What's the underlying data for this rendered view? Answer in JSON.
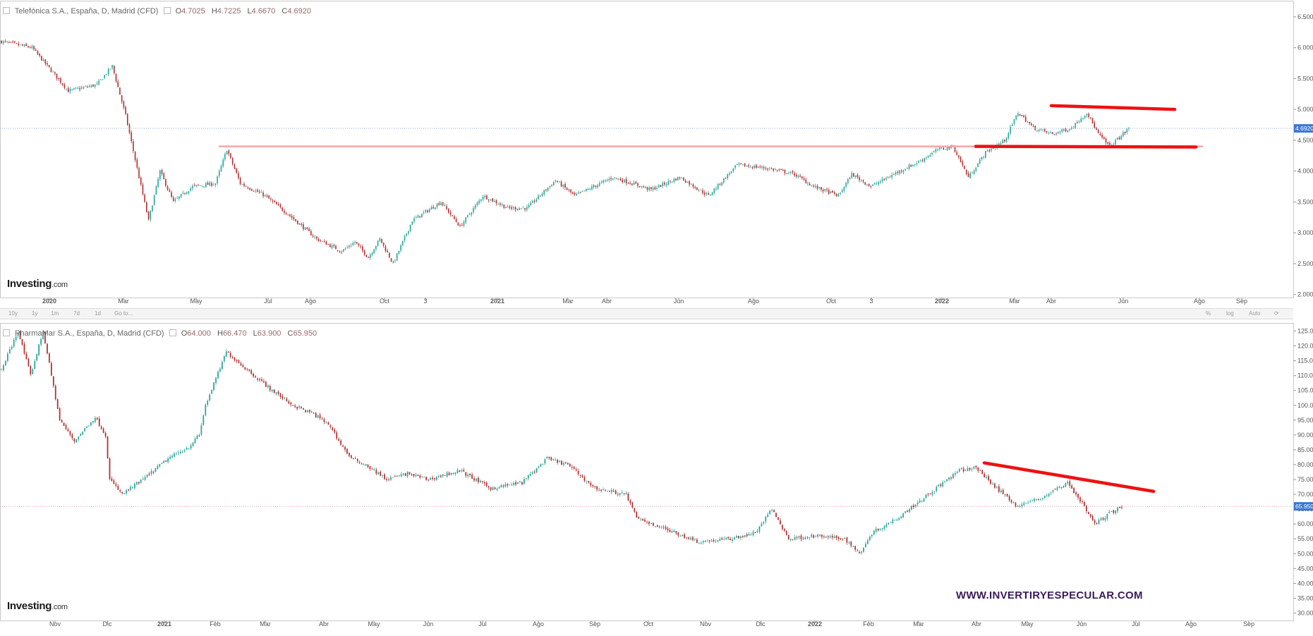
{
  "colors": {
    "up": "#26a69a",
    "down": "#b22f2f",
    "trend": "#ee1111",
    "level": "#f4a6a6",
    "price_tag": "#3b78d4",
    "axis": "#555555"
  },
  "toolbar": {
    "left": [
      "10y",
      "1y",
      "1m",
      "7d",
      "1d",
      "Go to..."
    ],
    "right": [
      "%",
      "log",
      "Auto"
    ]
  },
  "chart_data": [
    {
      "type": "candlestick",
      "symbol": "Telefónica S.A., España, D, Madrid (CFD)",
      "ohlc_labels": [
        "O",
        "H",
        "L",
        "C"
      ],
      "ohlc_values": [
        "4.7025",
        "4.7225",
        "4.6670",
        "4.6920"
      ],
      "last_price": "4.6920",
      "x_ticks": [
        "2020",
        "Mar",
        "May",
        "Jul",
        "Ago",
        "Oct",
        "3",
        "2021",
        "Mar",
        "Abr",
        "Jun",
        "Ago",
        "Oct",
        "3",
        "2022",
        "Mar",
        "Abr",
        "Jun",
        "Ago",
        "Sep"
      ],
      "y_ticks": [
        "6.5000",
        "6.0000",
        "5.5000",
        "5.0000",
        "4.5000",
        "4.0000",
        "3.5000",
        "3.0000",
        "2.5000",
        "2.0000"
      ],
      "ylim": [
        1.95,
        6.75
      ],
      "key_points": [
        [
          0,
          6.1
        ],
        [
          16,
          6.0
        ],
        [
          35,
          5.3
        ],
        [
          50,
          5.4
        ],
        [
          58,
          5.7
        ],
        [
          65,
          4.9
        ],
        [
          72,
          3.9
        ],
        [
          77,
          3.2
        ],
        [
          83,
          4.0
        ],
        [
          90,
          3.5
        ],
        [
          100,
          3.75
        ],
        [
          112,
          3.8
        ],
        [
          118,
          4.35
        ],
        [
          125,
          3.8
        ],
        [
          138,
          3.6
        ],
        [
          150,
          3.3
        ],
        [
          165,
          2.9
        ],
        [
          178,
          2.7
        ],
        [
          185,
          2.85
        ],
        [
          192,
          2.6
        ],
        [
          198,
          2.9
        ],
        [
          205,
          2.5
        ],
        [
          215,
          3.2
        ],
        [
          230,
          3.5
        ],
        [
          240,
          3.1
        ],
        [
          252,
          3.6
        ],
        [
          265,
          3.4
        ],
        [
          275,
          3.4
        ],
        [
          290,
          3.85
        ],
        [
          300,
          3.6
        ],
        [
          320,
          3.9
        ],
        [
          340,
          3.7
        ],
        [
          355,
          3.9
        ],
        [
          370,
          3.6
        ],
        [
          385,
          4.1
        ],
        [
          400,
          4.05
        ],
        [
          415,
          3.95
        ],
        [
          425,
          3.75
        ],
        [
          438,
          3.6
        ],
        [
          445,
          3.95
        ],
        [
          455,
          3.75
        ],
        [
          470,
          4.0
        ],
        [
          480,
          4.15
        ],
        [
          490,
          4.35
        ],
        [
          498,
          4.4
        ],
        [
          506,
          3.9
        ],
        [
          515,
          4.3
        ],
        [
          525,
          4.5
        ],
        [
          532,
          4.95
        ],
        [
          540,
          4.7
        ],
        [
          550,
          4.6
        ],
        [
          560,
          4.7
        ],
        [
          568,
          4.95
        ],
        [
          574,
          4.6
        ],
        [
          580,
          4.4
        ],
        [
          590,
          4.69
        ]
      ],
      "annotations": {
        "support": [
          4.4,
          4.39
        ],
        "resistance": [
          5.06,
          5.0
        ],
        "prior_level": 4.4
      }
    },
    {
      "type": "candlestick",
      "symbol": "PharmaMar S.A., España, D, Madrid (CFD)",
      "ohlc_labels": [
        "O",
        "H",
        "L",
        "C"
      ],
      "ohlc_values": [
        "64.000",
        "66.470",
        "63.900",
        "65.950"
      ],
      "last_price": "65.950",
      "x_ticks": [
        "Nov",
        "Dic",
        "2021",
        "Feb",
        "Mar",
        "Abr",
        "May",
        "Jun",
        "Jul",
        "Ago",
        "Sep",
        "Oct",
        "Nov",
        "Dic",
        "2022",
        "Feb",
        "Mar",
        "Abr",
        "May",
        "Jun",
        "Jul",
        "Ago",
        "Sep"
      ],
      "y_ticks": [
        "125.000",
        "120.000",
        "115.000",
        "110.000",
        "105.000",
        "100.000",
        "95.000",
        "90.000",
        "85.000",
        "80.000",
        "75.000",
        "70.000",
        "65.000",
        "60.000",
        "55.000",
        "50.000",
        "45.000",
        "40.000",
        "35.000",
        "30.000"
      ],
      "ylim": [
        27.5,
        127.5
      ],
      "key_points": [
        [
          0,
          112
        ],
        [
          8,
          125
        ],
        [
          14,
          110
        ],
        [
          20,
          125
        ],
        [
          28,
          95
        ],
        [
          35,
          88
        ],
        [
          45,
          96
        ],
        [
          50,
          90
        ],
        [
          52,
          75
        ],
        [
          58,
          70
        ],
        [
          68,
          75
        ],
        [
          80,
          82
        ],
        [
          90,
          86
        ],
        [
          95,
          90
        ],
        [
          98,
          100
        ],
        [
          108,
          118
        ],
        [
          118,
          112
        ],
        [
          130,
          105
        ],
        [
          140,
          100
        ],
        [
          150,
          97
        ],
        [
          158,
          93
        ],
        [
          162,
          88
        ],
        [
          168,
          82
        ],
        [
          175,
          80
        ],
        [
          185,
          75
        ],
        [
          195,
          77
        ],
        [
          205,
          75
        ],
        [
          220,
          78
        ],
        [
          235,
          72
        ],
        [
          250,
          74
        ],
        [
          262,
          82
        ],
        [
          272,
          80
        ],
        [
          285,
          72
        ],
        [
          300,
          70
        ],
        [
          305,
          62
        ],
        [
          320,
          58
        ],
        [
          335,
          54
        ],
        [
          350,
          55
        ],
        [
          362,
          57
        ],
        [
          370,
          65
        ],
        [
          378,
          55
        ],
        [
          390,
          56
        ],
        [
          405,
          55
        ],
        [
          412,
          50
        ],
        [
          418,
          57
        ],
        [
          430,
          62
        ],
        [
          445,
          70
        ],
        [
          460,
          78
        ],
        [
          468,
          79
        ],
        [
          478,
          72
        ],
        [
          488,
          66
        ],
        [
          500,
          69
        ],
        [
          512,
          74
        ],
        [
          518,
          68
        ],
        [
          525,
          60
        ],
        [
          533,
          64
        ],
        [
          538,
          65.95
        ]
      ],
      "annotations": {
        "trend": [
          80.6,
          71.0
        ],
        "prior_level": 65.95
      }
    }
  ],
  "watermark": "WWW.INVERTIRYESPECULAR.COM",
  "logo": {
    "main": "Investing",
    "suffix": ".com"
  }
}
